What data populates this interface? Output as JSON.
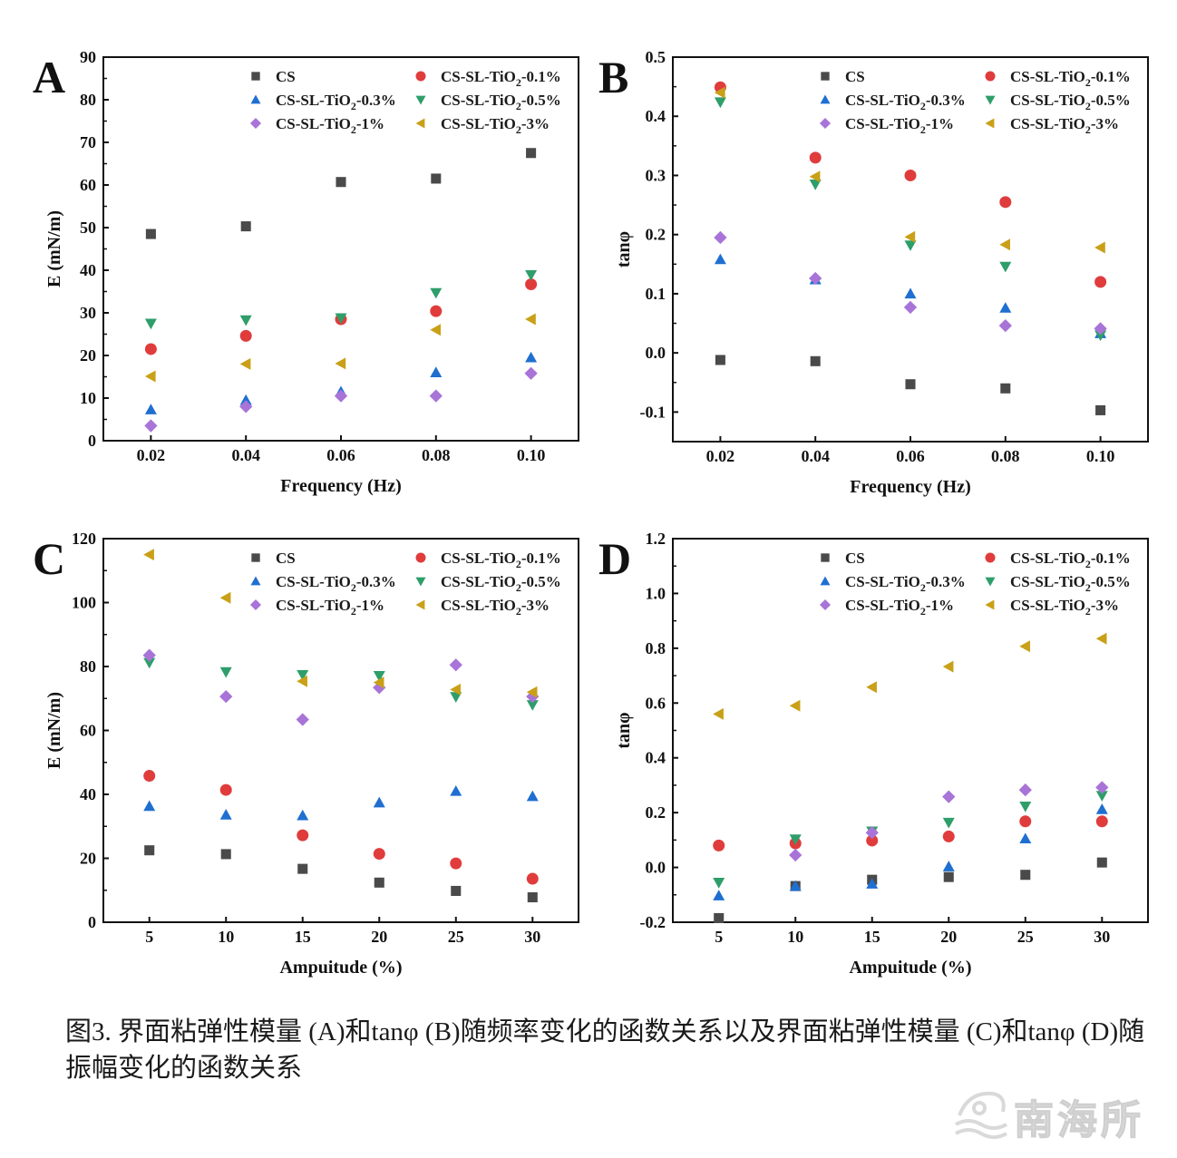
{
  "caption": "图3. 界面粘弹性模量 (A)和tanφ (B)随频率变化的函数关系以及界面粘弹性模量 (C)和tanφ (D)随振幅变化的函数关系",
  "watermark": "南海所",
  "series_styles": [
    {
      "name": "CS",
      "marker": "square",
      "color": "#4a4a4a"
    },
    {
      "name": "CS-SL-TiO2-0.1%",
      "marker": "circle",
      "color": "#e03c3c"
    },
    {
      "name": "CS-SL-TiO2-0.3%",
      "marker": "triangle-up",
      "color": "#1f6fd1"
    },
    {
      "name": "CS-SL-TiO2-0.5%",
      "marker": "triangle-down",
      "color": "#2e9e6a"
    },
    {
      "name": "CS-SL-TiO2-1%",
      "marker": "diamond",
      "color": "#a874d8"
    },
    {
      "name": "CS-SL-TiO2-3%",
      "marker": "triangle-left",
      "color": "#c9a017"
    }
  ],
  "chart_data": [
    {
      "panel": "A",
      "type": "scatter",
      "title": "",
      "xlabel": "Frequency (Hz)",
      "ylabel": "E (mN/m)",
      "x": [
        0.02,
        0.04,
        0.06,
        0.08,
        0.1
      ],
      "xticks": [
        "0.02",
        "0.04",
        "0.06",
        "0.08",
        "0.10"
      ],
      "xlim": [
        0.01,
        0.11
      ],
      "ylim": [
        0,
        90
      ],
      "yticks": [
        0,
        10,
        20,
        30,
        40,
        50,
        60,
        70,
        80,
        90
      ],
      "ytick_labels": [
        "0",
        "10",
        "20",
        "30",
        "40",
        "50",
        "60",
        "70",
        "80",
        "90"
      ],
      "legend": "top-right",
      "grid": false,
      "series": [
        {
          "name": "CS",
          "values": [
            48.5,
            50.3,
            60.7,
            61.5,
            67.5
          ]
        },
        {
          "name": "CS-SL-TiO2-0.1%",
          "values": [
            21.5,
            24.6,
            28.5,
            30.4,
            36.7
          ]
        },
        {
          "name": "CS-SL-TiO2-0.3%",
          "values": [
            7.3,
            9.5,
            11.5,
            16.0,
            19.5
          ]
        },
        {
          "name": "CS-SL-TiO2-0.5%",
          "values": [
            27.5,
            28.3,
            28.8,
            34.7,
            38.9
          ]
        },
        {
          "name": "CS-SL-TiO2-1%",
          "values": [
            3.5,
            8.0,
            10.5,
            10.5,
            15.8
          ]
        },
        {
          "name": "CS-SL-TiO2-3%",
          "values": [
            15.1,
            18.0,
            18.1,
            26.0,
            28.5
          ]
        }
      ]
    },
    {
      "panel": "B",
      "type": "scatter",
      "title": "",
      "xlabel": "Frequency (Hz)",
      "ylabel": "tanφ",
      "x": [
        0.02,
        0.04,
        0.06,
        0.08,
        0.1
      ],
      "xticks": [
        "0.02",
        "0.04",
        "0.06",
        "0.08",
        "0.10"
      ],
      "xlim": [
        0.01,
        0.11
      ],
      "ylim": [
        -0.15,
        0.5
      ],
      "yticks": [
        -0.1,
        0.0,
        0.1,
        0.2,
        0.3,
        0.4,
        0.5
      ],
      "ytick_labels": [
        "-0.1",
        "0.0",
        "0.1",
        "0.2",
        "0.3",
        "0.4",
        "0.5"
      ],
      "legend": "top-right",
      "grid": false,
      "series": [
        {
          "name": "CS",
          "values": [
            -0.012,
            -0.014,
            -0.053,
            -0.06,
            -0.097
          ]
        },
        {
          "name": "CS-SL-TiO2-0.1%",
          "values": [
            0.449,
            0.33,
            0.3,
            0.255,
            0.12
          ]
        },
        {
          "name": "CS-SL-TiO2-0.3%",
          "values": [
            0.158,
            0.124,
            0.1,
            0.076,
            0.033
          ]
        },
        {
          "name": "CS-SL-TiO2-0.5%",
          "values": [
            0.424,
            0.285,
            0.182,
            0.146,
            0.03
          ]
        },
        {
          "name": "CS-SL-TiO2-1%",
          "values": [
            0.195,
            0.126,
            0.077,
            0.046,
            0.041
          ]
        },
        {
          "name": "CS-SL-TiO2-3%",
          "values": [
            0.44,
            0.298,
            0.196,
            0.183,
            0.178
          ]
        }
      ]
    },
    {
      "panel": "C",
      "type": "scatter",
      "title": "",
      "xlabel": "Ampuitude (%)",
      "ylabel": "E (mN/m)",
      "x": [
        5,
        10,
        15,
        20,
        25,
        30
      ],
      "xticks": [
        "5",
        "10",
        "15",
        "20",
        "25",
        "30"
      ],
      "xlim": [
        2,
        33
      ],
      "ylim": [
        0,
        120
      ],
      "yticks": [
        0,
        20,
        40,
        60,
        80,
        100,
        120
      ],
      "ytick_labels": [
        "0",
        "20",
        "40",
        "60",
        "80",
        "100",
        "120"
      ],
      "legend": "top-right",
      "grid": false,
      "series": [
        {
          "name": "CS",
          "values": [
            22.5,
            21.3,
            16.7,
            12.4,
            9.8,
            7.8
          ]
        },
        {
          "name": "CS-SL-TiO2-0.1%",
          "values": [
            45.8,
            41.4,
            27.2,
            21.4,
            18.4,
            13.6
          ]
        },
        {
          "name": "CS-SL-TiO2-0.3%",
          "values": [
            36.3,
            33.6,
            33.4,
            37.4,
            41.0,
            39.4
          ]
        },
        {
          "name": "CS-SL-TiO2-0.5%",
          "values": [
            81.2,
            78.3,
            77.4,
            77.1,
            70.5,
            68.0
          ]
        },
        {
          "name": "CS-SL-TiO2-1%",
          "values": [
            83.5,
            70.6,
            63.4,
            73.4,
            80.5,
            70.6
          ]
        },
        {
          "name": "CS-SL-TiO2-3%",
          "values": [
            115.0,
            101.5,
            75.4,
            75.0,
            72.8,
            72.0
          ]
        }
      ]
    },
    {
      "panel": "D",
      "type": "scatter",
      "title": "",
      "xlabel": "Ampuitude (%)",
      "ylabel": "tanφ",
      "x": [
        5,
        10,
        15,
        20,
        25,
        30
      ],
      "xticks": [
        "5",
        "10",
        "15",
        "20",
        "25",
        "30"
      ],
      "xlim": [
        2,
        33
      ],
      "ylim": [
        -0.2,
        1.2
      ],
      "yticks": [
        -0.2,
        0.0,
        0.2,
        0.4,
        0.6,
        0.8,
        1.0,
        1.2
      ],
      "ytick_labels": [
        "-0.2",
        "0.0",
        "0.2",
        "0.4",
        "0.6",
        "0.8",
        "1.0",
        "1.2"
      ],
      "legend": "top-right",
      "grid": false,
      "series": [
        {
          "name": "CS",
          "values": [
            -0.185,
            -0.068,
            -0.045,
            -0.035,
            -0.027,
            0.018
          ]
        },
        {
          "name": "CS-SL-TiO2-0.1%",
          "values": [
            0.08,
            0.088,
            0.098,
            0.113,
            0.168,
            0.168
          ]
        },
        {
          "name": "CS-SL-TiO2-0.3%",
          "values": [
            -0.103,
            -0.068,
            -0.06,
            0.003,
            0.105,
            0.212
          ]
        },
        {
          "name": "CS-SL-TiO2-0.5%",
          "values": [
            -0.055,
            0.103,
            0.132,
            0.164,
            0.223,
            0.262
          ]
        },
        {
          "name": "CS-SL-TiO2-1%",
          "values": [
            null,
            0.045,
            0.127,
            0.258,
            0.283,
            0.292
          ]
        },
        {
          "name": "CS-SL-TiO2-3%",
          "values": [
            0.56,
            0.59,
            0.658,
            0.733,
            0.807,
            0.835
          ]
        }
      ]
    }
  ]
}
